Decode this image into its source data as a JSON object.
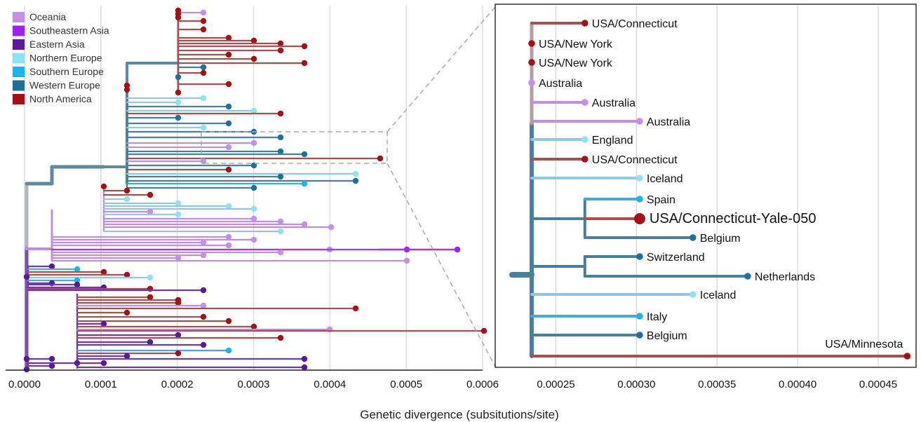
{
  "xlabel": "Genetic divergence (subsitutions/site)",
  "legend": [
    {
      "label": "Oceania",
      "color": "#c58ee8"
    },
    {
      "label": "Southeastern Asia",
      "color": "#a020f0"
    },
    {
      "label": "Eastern Asia",
      "color": "#5a189a"
    },
    {
      "label": "Northern Europe",
      "color": "#8fe2f5"
    },
    {
      "label": "Southern Europe",
      "color": "#1ab4f0"
    },
    {
      "label": "Western Europe",
      "color": "#1f6f9f"
    },
    {
      "label": "North America",
      "color": "#a50f15"
    }
  ],
  "main_axis": {
    "ticks": [
      "0.0000",
      "0.0001",
      "0.0002",
      "0.0003",
      "0.0004",
      "0.0005",
      "0.0006"
    ],
    "range": [
      0,
      0.0006
    ]
  },
  "inset_axis": {
    "ticks": [
      "0.00025",
      "0.00030",
      "0.00035",
      "0.00040",
      "0.00045"
    ],
    "range": [
      0.000215,
      0.00047
    ]
  },
  "inset_tips": [
    {
      "label": "USA/Connecticut",
      "region": "North America",
      "divergence": 0.000268
    },
    {
      "label": "USA/New York",
      "region": "North America",
      "divergence": 0.000235
    },
    {
      "label": "USA/New York",
      "region": "North America",
      "divergence": 0.000235
    },
    {
      "label": "Australia",
      "region": "Oceania",
      "divergence": 0.000235
    },
    {
      "label": "Australia",
      "region": "Oceania",
      "divergence": 0.000268
    },
    {
      "label": "Australia",
      "region": "Oceania",
      "divergence": 0.000302
    },
    {
      "label": "England",
      "region": "Northern Europe",
      "divergence": 0.000268
    },
    {
      "label": "USA/Connecticut",
      "region": "North America",
      "divergence": 0.000268
    },
    {
      "label": "Iceland",
      "region": "Northern Europe",
      "divergence": 0.000302
    },
    {
      "label": "Spain",
      "region": "Southern Europe",
      "divergence": 0.000302
    },
    {
      "label": "USA/Connecticut-Yale-050",
      "region": "North America",
      "divergence": 0.000302,
      "highlight": true
    },
    {
      "label": "Belgium",
      "region": "Western Europe",
      "divergence": 0.000335
    },
    {
      "label": "Switzerland",
      "region": "Western Europe",
      "divergence": 0.000302
    },
    {
      "label": "Netherlands",
      "region": "Western Europe",
      "divergence": 0.000369
    },
    {
      "label": "Iceland",
      "region": "Northern Europe",
      "divergence": 0.000335
    },
    {
      "label": "Italy",
      "region": "Southern Europe",
      "divergence": 0.000302
    },
    {
      "label": "Belgium",
      "region": "Western Europe",
      "divergence": 0.000302
    },
    {
      "label": "USA/Minnesota",
      "region": "North America",
      "divergence": 0.000468
    }
  ]
}
